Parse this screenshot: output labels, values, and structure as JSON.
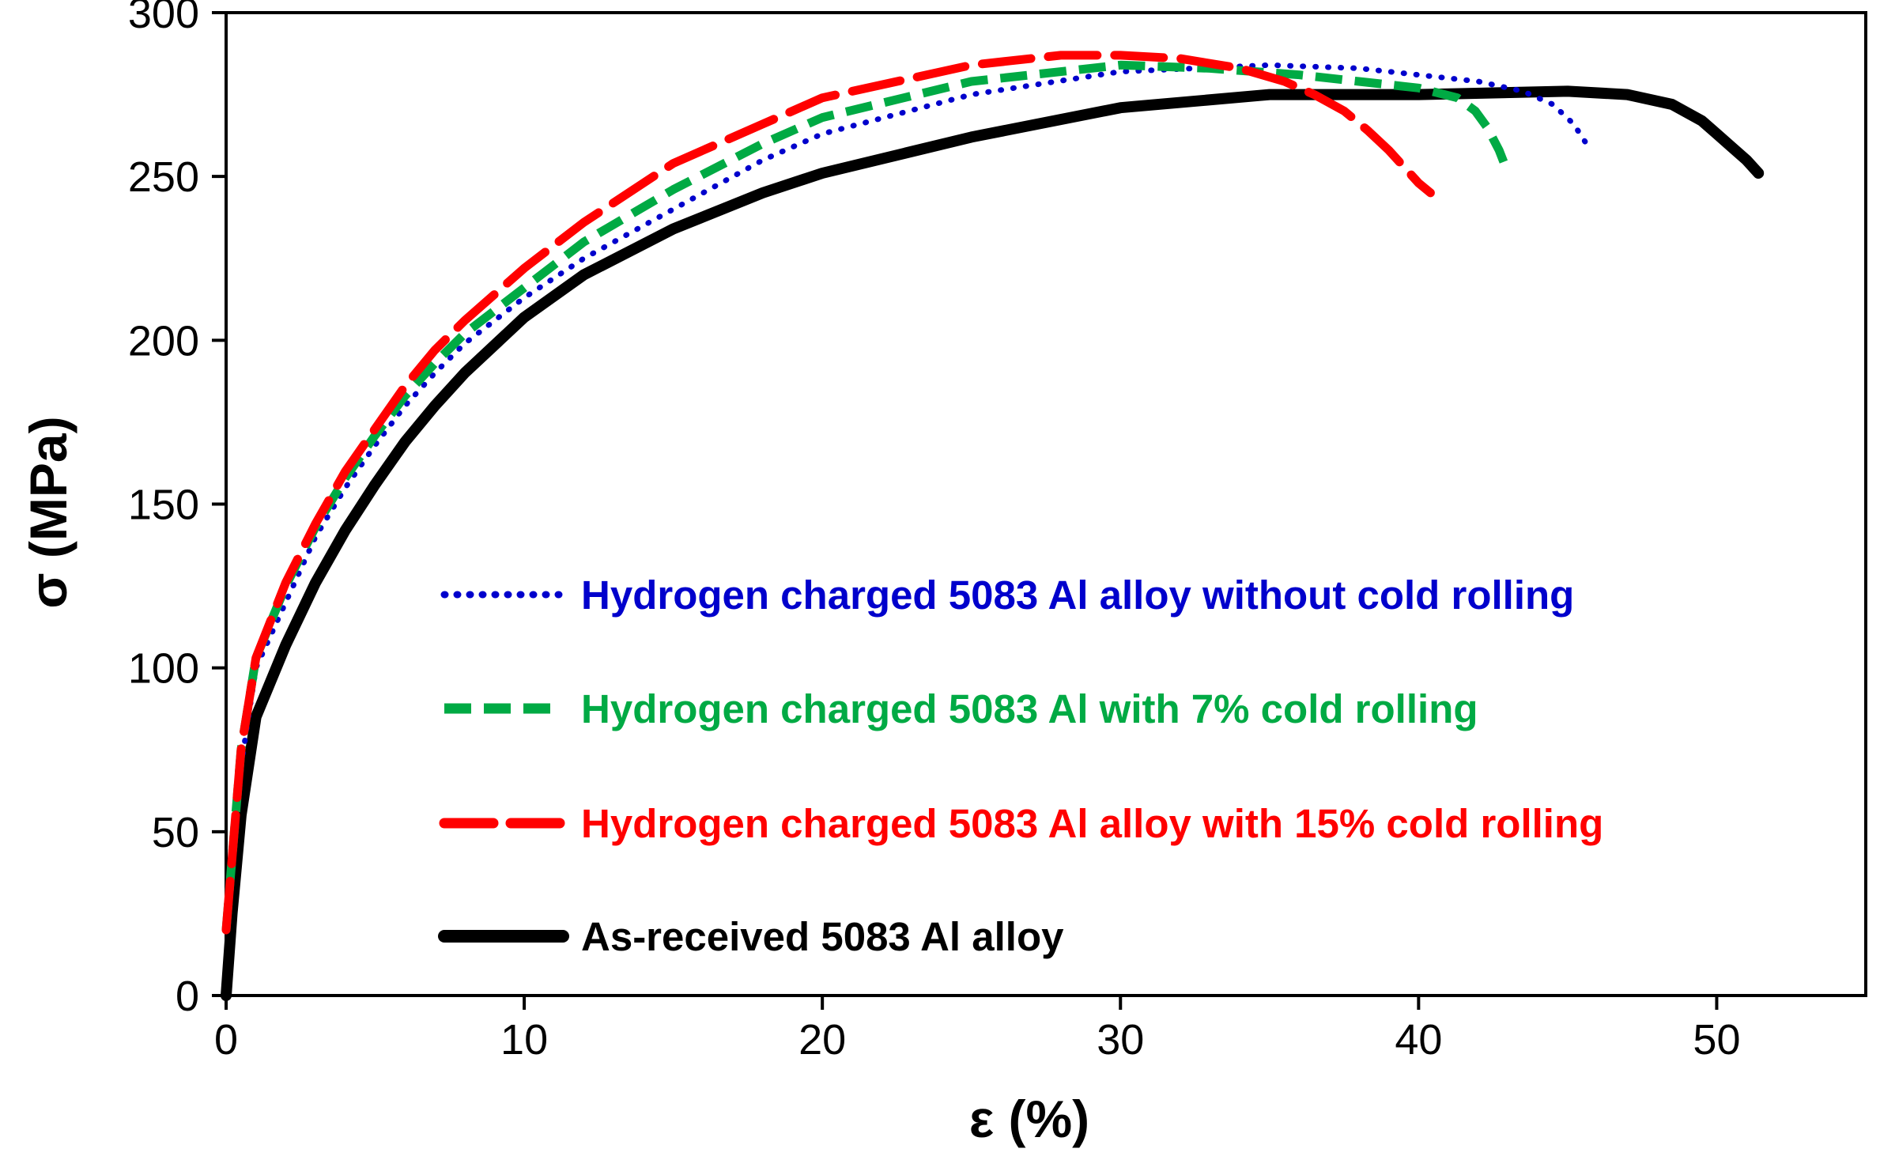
{
  "chart_data": {
    "type": "line",
    "title": "",
    "xlabel": "ε (%)",
    "ylabel": "σ (MPa)",
    "xlim": [
      0,
      55
    ],
    "ylim": [
      0,
      300
    ],
    "x_ticks": [
      0,
      10,
      20,
      30,
      40,
      50
    ],
    "y_ticks": [
      0,
      50,
      100,
      150,
      200,
      250,
      300
    ],
    "x_tick_labels": [
      "0",
      "10",
      "20",
      "30",
      "40",
      "50"
    ],
    "y_tick_labels": [
      "0",
      "50",
      "100",
      "150",
      "200",
      "250",
      "300"
    ],
    "grid": false,
    "legend_position": "center",
    "series": [
      {
        "name": "Hydrogen charged 5083 Al alloy without cold rolling",
        "color": "#0000CC",
        "style": "dotted",
        "x": [
          0,
          0.5,
          1,
          2,
          3,
          4,
          5,
          6,
          7,
          8,
          10,
          12,
          15,
          18,
          20,
          25,
          30,
          35,
          38,
          40,
          42,
          43.5,
          44.5,
          45.2,
          45.7
        ],
        "y": [
          20,
          70,
          100,
          120,
          140,
          155,
          168,
          180,
          190,
          199,
          213,
          225,
          240,
          255,
          263,
          275,
          282,
          284,
          283,
          281,
          279,
          276,
          272,
          266,
          259
        ]
      },
      {
        "name": "Hydrogen charged 5083 Al with 7% cold rolling",
        "color": "#00AA44",
        "style": "dashed",
        "x": [
          0,
          0.5,
          1,
          2,
          3,
          4,
          5,
          6,
          7,
          8,
          10,
          12,
          15,
          18,
          20,
          25,
          30,
          33,
          36,
          38,
          40,
          41.3,
          41.9,
          42.3,
          42.7,
          43
        ],
        "y": [
          20,
          75,
          103,
          125,
          143,
          158,
          171,
          183,
          193,
          202,
          216,
          230,
          246,
          260,
          268,
          279,
          284,
          283,
          281,
          279,
          277,
          274,
          270,
          265,
          258,
          251
        ]
      },
      {
        "name": "Hydrogen charged 5083 Al alloy with 15% cold rolling",
        "color": "#FF0000",
        "style": "longdash",
        "x": [
          0,
          0.5,
          1,
          2,
          3,
          4,
          5,
          6,
          7,
          8,
          10,
          12,
          15,
          18,
          20,
          25,
          28,
          30,
          32,
          34,
          35.5,
          36.5,
          37.5,
          38.3,
          39,
          39.5,
          40,
          40.4
        ],
        "y": [
          20,
          75,
          103,
          126,
          144,
          160,
          173,
          186,
          197,
          206,
          222,
          236,
          254,
          266,
          274,
          284,
          287,
          287,
          286,
          283,
          279,
          275,
          270,
          264,
          258,
          253,
          248,
          245
        ]
      },
      {
        "name": "As-received 5083 Al alloy",
        "color": "#000000",
        "style": "solid",
        "x": [
          0,
          0.2,
          0.5,
          1,
          2,
          3,
          4,
          5,
          6,
          7,
          8,
          10,
          12,
          15,
          18,
          20,
          25,
          30,
          35,
          40,
          45,
          47,
          48.5,
          49.5,
          50,
          50.5,
          51,
          51.4
        ],
        "y": [
          0,
          25,
          55,
          85,
          107,
          126,
          142,
          156,
          169,
          180,
          190,
          207,
          220,
          234,
          245,
          251,
          262,
          271,
          275,
          275,
          276,
          275,
          272,
          267,
          263,
          259,
          255,
          251
        ]
      }
    ]
  }
}
